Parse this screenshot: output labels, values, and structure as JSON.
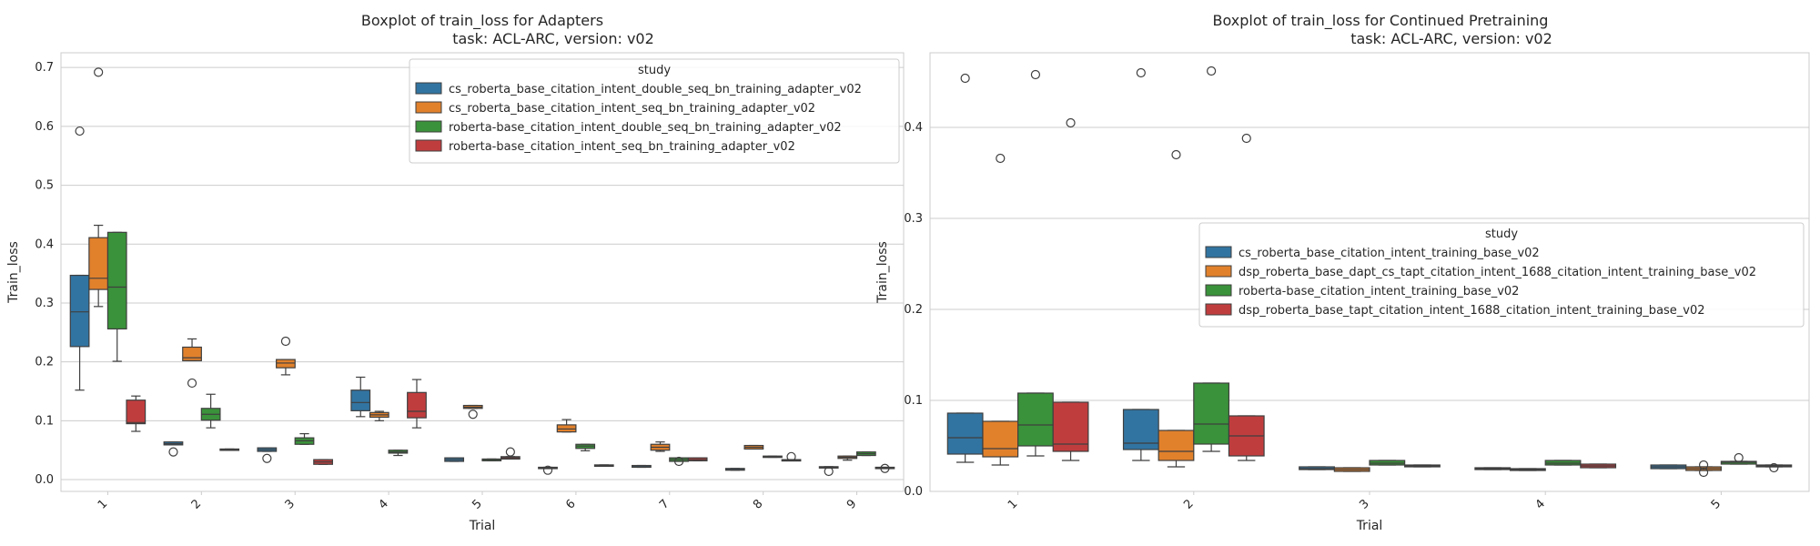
{
  "chart_data": [
    {
      "type": "boxplot",
      "title": "Boxplot of train_loss for Adapters",
      "subtitle": "task: ACL-ARC, version: v02",
      "xlabel": "Trial",
      "ylabel": "Train_loss",
      "categories": [
        "1",
        "2",
        "3",
        "4",
        "5",
        "6",
        "7",
        "8",
        "9"
      ],
      "yticks": [
        "0.0",
        "0.1",
        "0.2",
        "0.3",
        "0.4",
        "0.5",
        "0.6",
        "0.7"
      ],
      "ylim": [
        -0.02,
        0.725
      ],
      "grid": true,
      "legend": {
        "title": "study",
        "placement": "upper-right"
      },
      "series": [
        {
          "name": "cs_roberta_base_citation_intent_double_seq_bn_training_adapter_v02",
          "color": "#3274a1",
          "boxes": [
            {
              "q1": 0.226,
              "med": 0.285,
              "q3": 0.347,
              "wlo": 0.152,
              "whi": 0.347,
              "fliers": [
                0.592
              ]
            },
            {
              "q1": 0.059,
              "med": 0.061,
              "q3": 0.064,
              "wlo": 0.059,
              "whi": 0.064,
              "fliers": [
                0.047
              ]
            },
            {
              "q1": 0.048,
              "med": 0.051,
              "q3": 0.054,
              "wlo": 0.048,
              "whi": 0.054,
              "fliers": [
                0.036
              ]
            },
            {
              "q1": 0.117,
              "med": 0.131,
              "q3": 0.152,
              "wlo": 0.107,
              "whi": 0.174,
              "fliers": []
            },
            {
              "q1": 0.031,
              "med": 0.034,
              "q3": 0.037,
              "wlo": 0.031,
              "whi": 0.037,
              "fliers": []
            },
            {
              "q1": 0.019,
              "med": 0.02,
              "q3": 0.021,
              "wlo": 0.019,
              "whi": 0.021,
              "fliers": [
                0.016
              ]
            },
            {
              "q1": 0.021,
              "med": 0.022,
              "q3": 0.024,
              "wlo": 0.021,
              "whi": 0.024,
              "fliers": []
            },
            {
              "q1": 0.016,
              "med": 0.017,
              "q3": 0.019,
              "wlo": 0.016,
              "whi": 0.019,
              "fliers": []
            },
            {
              "q1": 0.02,
              "med": 0.021,
              "q3": 0.022,
              "wlo": 0.02,
              "whi": 0.022,
              "fliers": [
                0.014
              ]
            }
          ]
        },
        {
          "name": "cs_roberta_base_citation_intent_seq_bn_training_adapter_v02",
          "color": "#e1812c",
          "boxes": [
            {
              "q1": 0.323,
              "med": 0.342,
              "q3": 0.411,
              "wlo": 0.294,
              "whi": 0.432,
              "fliers": [
                0.692
              ]
            },
            {
              "q1": 0.202,
              "med": 0.207,
              "q3": 0.225,
              "wlo": 0.202,
              "whi": 0.239,
              "fliers": [
                0.164
              ]
            },
            {
              "q1": 0.19,
              "med": 0.198,
              "q3": 0.204,
              "wlo": 0.178,
              "whi": 0.204,
              "fliers": [
                0.235
              ]
            },
            {
              "q1": 0.106,
              "med": 0.11,
              "q3": 0.114,
              "wlo": 0.1,
              "whi": 0.116,
              "fliers": []
            },
            {
              "q1": 0.121,
              "med": 0.123,
              "q3": 0.126,
              "wlo": 0.121,
              "whi": 0.126,
              "fliers": [
                0.111
              ]
            },
            {
              "q1": 0.081,
              "med": 0.086,
              "q3": 0.093,
              "wlo": 0.081,
              "whi": 0.102,
              "fliers": []
            },
            {
              "q1": 0.05,
              "med": 0.055,
              "q3": 0.06,
              "wlo": 0.048,
              "whi": 0.064,
              "fliers": []
            },
            {
              "q1": 0.052,
              "med": 0.055,
              "q3": 0.058,
              "wlo": 0.052,
              "whi": 0.058,
              "fliers": []
            },
            {
              "q1": 0.036,
              "med": 0.038,
              "q3": 0.04,
              "wlo": 0.033,
              "whi": 0.04,
              "fliers": []
            }
          ]
        },
        {
          "name": "roberta-base_citation_intent_double_seq_bn_training_adapter_v02",
          "color": "#3a923a",
          "boxes": [
            {
              "q1": 0.256,
              "med": 0.327,
              "q3": 0.42,
              "wlo": 0.201,
              "whi": 0.42,
              "fliers": []
            },
            {
              "q1": 0.101,
              "med": 0.111,
              "q3": 0.121,
              "wlo": 0.088,
              "whi": 0.145,
              "fliers": []
            },
            {
              "q1": 0.06,
              "med": 0.066,
              "q3": 0.071,
              "wlo": 0.06,
              "whi": 0.078,
              "fliers": []
            },
            {
              "q1": 0.045,
              "med": 0.047,
              "q3": 0.05,
              "wlo": 0.041,
              "whi": 0.05,
              "fliers": []
            },
            {
              "q1": 0.032,
              "med": 0.034,
              "q3": 0.035,
              "wlo": 0.032,
              "whi": 0.035,
              "fliers": []
            },
            {
              "q1": 0.053,
              "med": 0.057,
              "q3": 0.06,
              "wlo": 0.049,
              "whi": 0.06,
              "fliers": []
            },
            {
              "q1": 0.031,
              "med": 0.034,
              "q3": 0.037,
              "wlo": 0.031,
              "whi": 0.037,
              "fliers": [
                0.031
              ]
            },
            {
              "q1": 0.038,
              "med": 0.039,
              "q3": 0.04,
              "wlo": 0.038,
              "whi": 0.04,
              "fliers": []
            },
            {
              "q1": 0.041,
              "med": 0.044,
              "q3": 0.047,
              "wlo": 0.041,
              "whi": 0.047,
              "fliers": []
            }
          ]
        },
        {
          "name": "roberta-base_citation_intent_seq_bn_training_adapter_v02",
          "color": "#c03d3e",
          "boxes": [
            {
              "q1": 0.095,
              "med": 0.097,
              "q3": 0.135,
              "wlo": 0.082,
              "whi": 0.142,
              "fliers": []
            },
            {
              "q1": 0.05,
              "med": 0.051,
              "q3": 0.052,
              "wlo": 0.05,
              "whi": 0.052,
              "fliers": []
            },
            {
              "q1": 0.026,
              "med": 0.03,
              "q3": 0.034,
              "wlo": 0.026,
              "whi": 0.034,
              "fliers": []
            },
            {
              "q1": 0.105,
              "med": 0.116,
              "q3": 0.148,
              "wlo": 0.088,
              "whi": 0.17,
              "fliers": []
            },
            {
              "q1": 0.035,
              "med": 0.037,
              "q3": 0.039,
              "wlo": 0.035,
              "whi": 0.039,
              "fliers": [
                0.047
              ]
            },
            {
              "q1": 0.023,
              "med": 0.024,
              "q3": 0.025,
              "wlo": 0.023,
              "whi": 0.025,
              "fliers": []
            },
            {
              "q1": 0.032,
              "med": 0.034,
              "q3": 0.037,
              "wlo": 0.032,
              "whi": 0.037,
              "fliers": []
            },
            {
              "q1": 0.032,
              "med": 0.033,
              "q3": 0.034,
              "wlo": 0.032,
              "whi": 0.034,
              "fliers": [
                0.039
              ]
            },
            {
              "q1": 0.019,
              "med": 0.02,
              "q3": 0.021,
              "wlo": 0.019,
              "whi": 0.021,
              "fliers": [
                0.019
              ]
            }
          ]
        }
      ]
    },
    {
      "type": "boxplot",
      "title": "Boxplot of train_loss for Continued Pretraining",
      "subtitle": "task: ACL-ARC, version: v02",
      "xlabel": "Trial",
      "ylabel": "Train_loss",
      "categories": [
        "1",
        "2",
        "3",
        "4",
        "5"
      ],
      "yticks": [
        "0.0",
        "0.1",
        "0.2",
        "0.3",
        "0.4"
      ],
      "ylim": [
        0.0,
        0.482
      ],
      "grid": true,
      "legend": {
        "title": "study",
        "placement": "center-right"
      },
      "series": [
        {
          "name": "cs_roberta_base_citation_intent_training_base_v02",
          "color": "#3274a1",
          "boxes": [
            {
              "q1": 0.041,
              "med": 0.059,
              "q3": 0.086,
              "wlo": 0.032,
              "whi": 0.086,
              "fliers": [
                0.454
              ]
            },
            {
              "q1": 0.046,
              "med": 0.053,
              "q3": 0.09,
              "wlo": 0.034,
              "whi": 0.09,
              "fliers": [
                0.46
              ]
            },
            {
              "q1": 0.024,
              "med": 0.025,
              "q3": 0.027,
              "wlo": 0.024,
              "whi": 0.027,
              "fliers": []
            },
            {
              "q1": 0.024,
              "med": 0.025,
              "q3": 0.026,
              "wlo": 0.024,
              "whi": 0.026,
              "fliers": []
            },
            {
              "q1": 0.025,
              "med": 0.027,
              "q3": 0.029,
              "wlo": 0.025,
              "whi": 0.029,
              "fliers": []
            }
          ]
        },
        {
          "name": "dsp_roberta_base_dapt_cs_tapt_citation_intent_1688_citation_intent_training_base_v02",
          "color": "#e1812c",
          "boxes": [
            {
              "q1": 0.038,
              "med": 0.047,
              "q3": 0.077,
              "wlo": 0.029,
              "whi": 0.077,
              "fliers": [
                0.366
              ]
            },
            {
              "q1": 0.034,
              "med": 0.044,
              "q3": 0.067,
              "wlo": 0.027,
              "whi": 0.067,
              "fliers": [
                0.37
              ]
            },
            {
              "q1": 0.022,
              "med": 0.024,
              "q3": 0.026,
              "wlo": 0.022,
              "whi": 0.026,
              "fliers": []
            },
            {
              "q1": 0.023,
              "med": 0.024,
              "q3": 0.025,
              "wlo": 0.023,
              "whi": 0.025,
              "fliers": []
            },
            {
              "q1": 0.023,
              "med": 0.025,
              "q3": 0.027,
              "wlo": 0.023,
              "whi": 0.027,
              "fliers": [
                0.029,
                0.021
              ]
            }
          ]
        },
        {
          "name": "roberta-base_citation_intent_training_base_v02",
          "color": "#3a923a",
          "boxes": [
            {
              "q1": 0.05,
              "med": 0.073,
              "q3": 0.108,
              "wlo": 0.039,
              "whi": 0.108,
              "fliers": [
                0.458
              ]
            },
            {
              "q1": 0.052,
              "med": 0.074,
              "q3": 0.119,
              "wlo": 0.044,
              "whi": 0.119,
              "fliers": [
                0.462
              ]
            },
            {
              "q1": 0.029,
              "med": 0.031,
              "q3": 0.034,
              "wlo": 0.029,
              "whi": 0.034,
              "fliers": []
            },
            {
              "q1": 0.029,
              "med": 0.031,
              "q3": 0.034,
              "wlo": 0.029,
              "whi": 0.034,
              "fliers": []
            },
            {
              "q1": 0.03,
              "med": 0.032,
              "q3": 0.033,
              "wlo": 0.03,
              "whi": 0.033,
              "fliers": [
                0.037
              ]
            }
          ]
        },
        {
          "name": "dsp_roberta_base_tapt_citation_intent_1688_citation_intent_training_base_v02",
          "color": "#c03d3e",
          "boxes": [
            {
              "q1": 0.044,
              "med": 0.052,
              "q3": 0.098,
              "wlo": 0.034,
              "whi": 0.098,
              "fliers": [
                0.405
              ]
            },
            {
              "q1": 0.039,
              "med": 0.061,
              "q3": 0.083,
              "wlo": 0.034,
              "whi": 0.083,
              "fliers": [
                0.388
              ]
            },
            {
              "q1": 0.027,
              "med": 0.028,
              "q3": 0.029,
              "wlo": 0.027,
              "whi": 0.029,
              "fliers": []
            },
            {
              "q1": 0.026,
              "med": 0.028,
              "q3": 0.03,
              "wlo": 0.026,
              "whi": 0.03,
              "fliers": []
            },
            {
              "q1": 0.027,
              "med": 0.028,
              "q3": 0.029,
              "wlo": 0.027,
              "whi": 0.029,
              "fliers": [
                0.026
              ]
            }
          ]
        }
      ]
    }
  ]
}
